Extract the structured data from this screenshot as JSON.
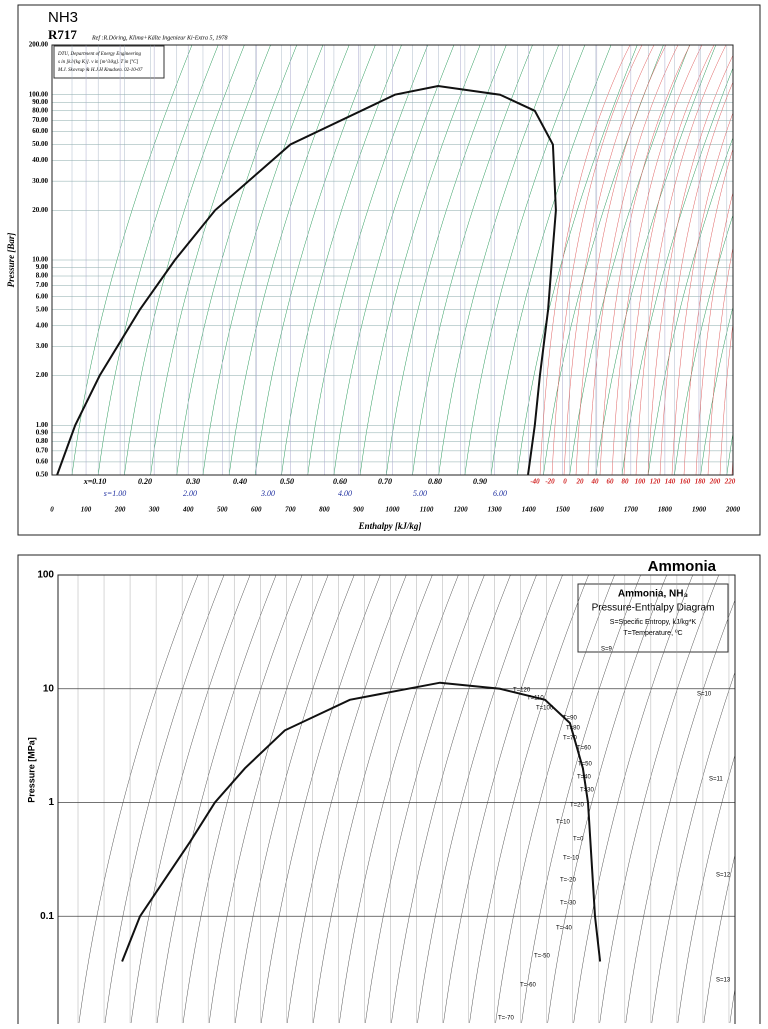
{
  "chart_data": [
    {
      "type": "line",
      "title": "NH3",
      "subtitle": "R717",
      "reference": "Ref :R.Döring, Klima+Kälte Ingenieur Ki-Extra 5, 1978",
      "info": [
        "DTU, Department of Energy Engineering",
        "s in [kJ/(kg K)]. v in [m^3/kg]. T in [ºC]",
        "M.J. Skovrup & H.J.H Knudsen. 02-10-07"
      ],
      "xlabel": "Enthalpy [kJ/kg]",
      "ylabel": "Pressure [Bar]",
      "log_y": true,
      "xlim": [
        0,
        2000
      ],
      "xticks": [
        0,
        100,
        200,
        300,
        400,
        500,
        600,
        700,
        800,
        900,
        1000,
        1100,
        1200,
        1300,
        1400,
        1500,
        1600,
        1700,
        1800,
        1900,
        2000
      ],
      "ylim": [
        0.5,
        200
      ],
      "yticks": [
        {
          "value": 200,
          "label": "200.00"
        },
        {
          "value": 100,
          "label": "100.00"
        },
        {
          "value": 90,
          "label": "90.00"
        },
        {
          "value": 80,
          "label": "80.00"
        },
        {
          "value": 70,
          "label": "70.00"
        },
        {
          "value": 60,
          "label": "60.00"
        },
        {
          "value": 50,
          "label": "50.00"
        },
        {
          "value": 40,
          "label": "40.00"
        },
        {
          "value": 30,
          "label": "30.00"
        },
        {
          "value": 20,
          "label": "20.00"
        },
        {
          "value": 10,
          "label": "10.00"
        },
        {
          "value": 9,
          "label": "9.00"
        },
        {
          "value": 8,
          "label": "8.00"
        },
        {
          "value": 7,
          "label": "7.00"
        },
        {
          "value": 6,
          "label": "6.00"
        },
        {
          "value": 5,
          "label": "5.00"
        },
        {
          "value": 4,
          "label": "4.00"
        },
        {
          "value": 3,
          "label": "3.00"
        },
        {
          "value": 2,
          "label": "2.00"
        },
        {
          "value": 1,
          "label": "1.00"
        },
        {
          "value": 0.9,
          "label": "0.90"
        },
        {
          "value": 0.8,
          "label": "0.80"
        },
        {
          "value": 0.7,
          "label": "0.70"
        },
        {
          "value": 0.6,
          "label": "0.60"
        },
        {
          "value": 0.5,
          "label": "0.50"
        }
      ],
      "grid": true,
      "series": [
        {
          "name": "saturation",
          "color": "#111111",
          "x": [
            15,
            68,
            140,
            258,
            361,
            479,
            700,
            1007,
            1134,
            1316,
            1418,
            1471,
            1480,
            1468,
            1457,
            1433,
            1418,
            1398
          ],
          "values": [
            0.5,
            1,
            2,
            5,
            10,
            20,
            50,
            100,
            113,
            100,
            80,
            50,
            20,
            10,
            5,
            2,
            1,
            0.5
          ]
        }
      ],
      "quality_labels": [
        "x=0.10",
        "0.20",
        "0.30",
        "0.40",
        "0.50",
        "0.60",
        "0.70",
        "0.80",
        "0.90"
      ],
      "entropy_labels": [
        "s=1.00",
        "2.00",
        "3.00",
        "4.00",
        "5.00",
        "6.00"
      ],
      "temperature_labels": [
        "-40",
        "-20",
        "0",
        "20",
        "40",
        "60",
        "80",
        "100",
        "120",
        "140",
        "160",
        "180",
        "200",
        "220"
      ]
    },
    {
      "type": "line",
      "title": "Ammonia",
      "legend_box": [
        "Ammonia, NH₃",
        "Pressure-Enthalpy Diagram",
        "S=Specific Entropy, kJ/kg*K",
        "T=Temperature, ºC"
      ],
      "ylabel": "Pressure [MPa]",
      "log_y": true,
      "xlim": [
        -400,
        2400
      ],
      "ylim": [
        0.01,
        100
      ],
      "yticks": [
        100,
        10,
        1,
        0.1
      ],
      "grid": true,
      "series": [
        {
          "name": "saturation",
          "color": "#111111",
          "x": [
            -135,
            -61,
            146,
            249,
            373,
            538,
            807,
            1180,
            1428,
            1614,
            1717,
            1771,
            1792,
            1821,
            1842
          ],
          "values": [
            0.04,
            0.1,
            0.45,
            1,
            2,
            4.3,
            8,
            11.3,
            10,
            8,
            5,
            2,
            1,
            0.1,
            0.04
          ]
        }
      ],
      "isotherm_labels": [
        "T=120",
        "T=110",
        "T=100",
        "T=90",
        "T=80",
        "T=70",
        "T=60",
        "T=50",
        "T=40",
        "T=30",
        "T=20",
        "T=10",
        "T=0",
        "T=-10",
        "T=-20",
        "T=-30",
        "T=-40",
        "T=-50",
        "T=-60",
        "T=-70"
      ],
      "isentrope_labels": [
        "S=9",
        "S=10",
        "S=11",
        "S=12",
        "S=13"
      ]
    }
  ]
}
